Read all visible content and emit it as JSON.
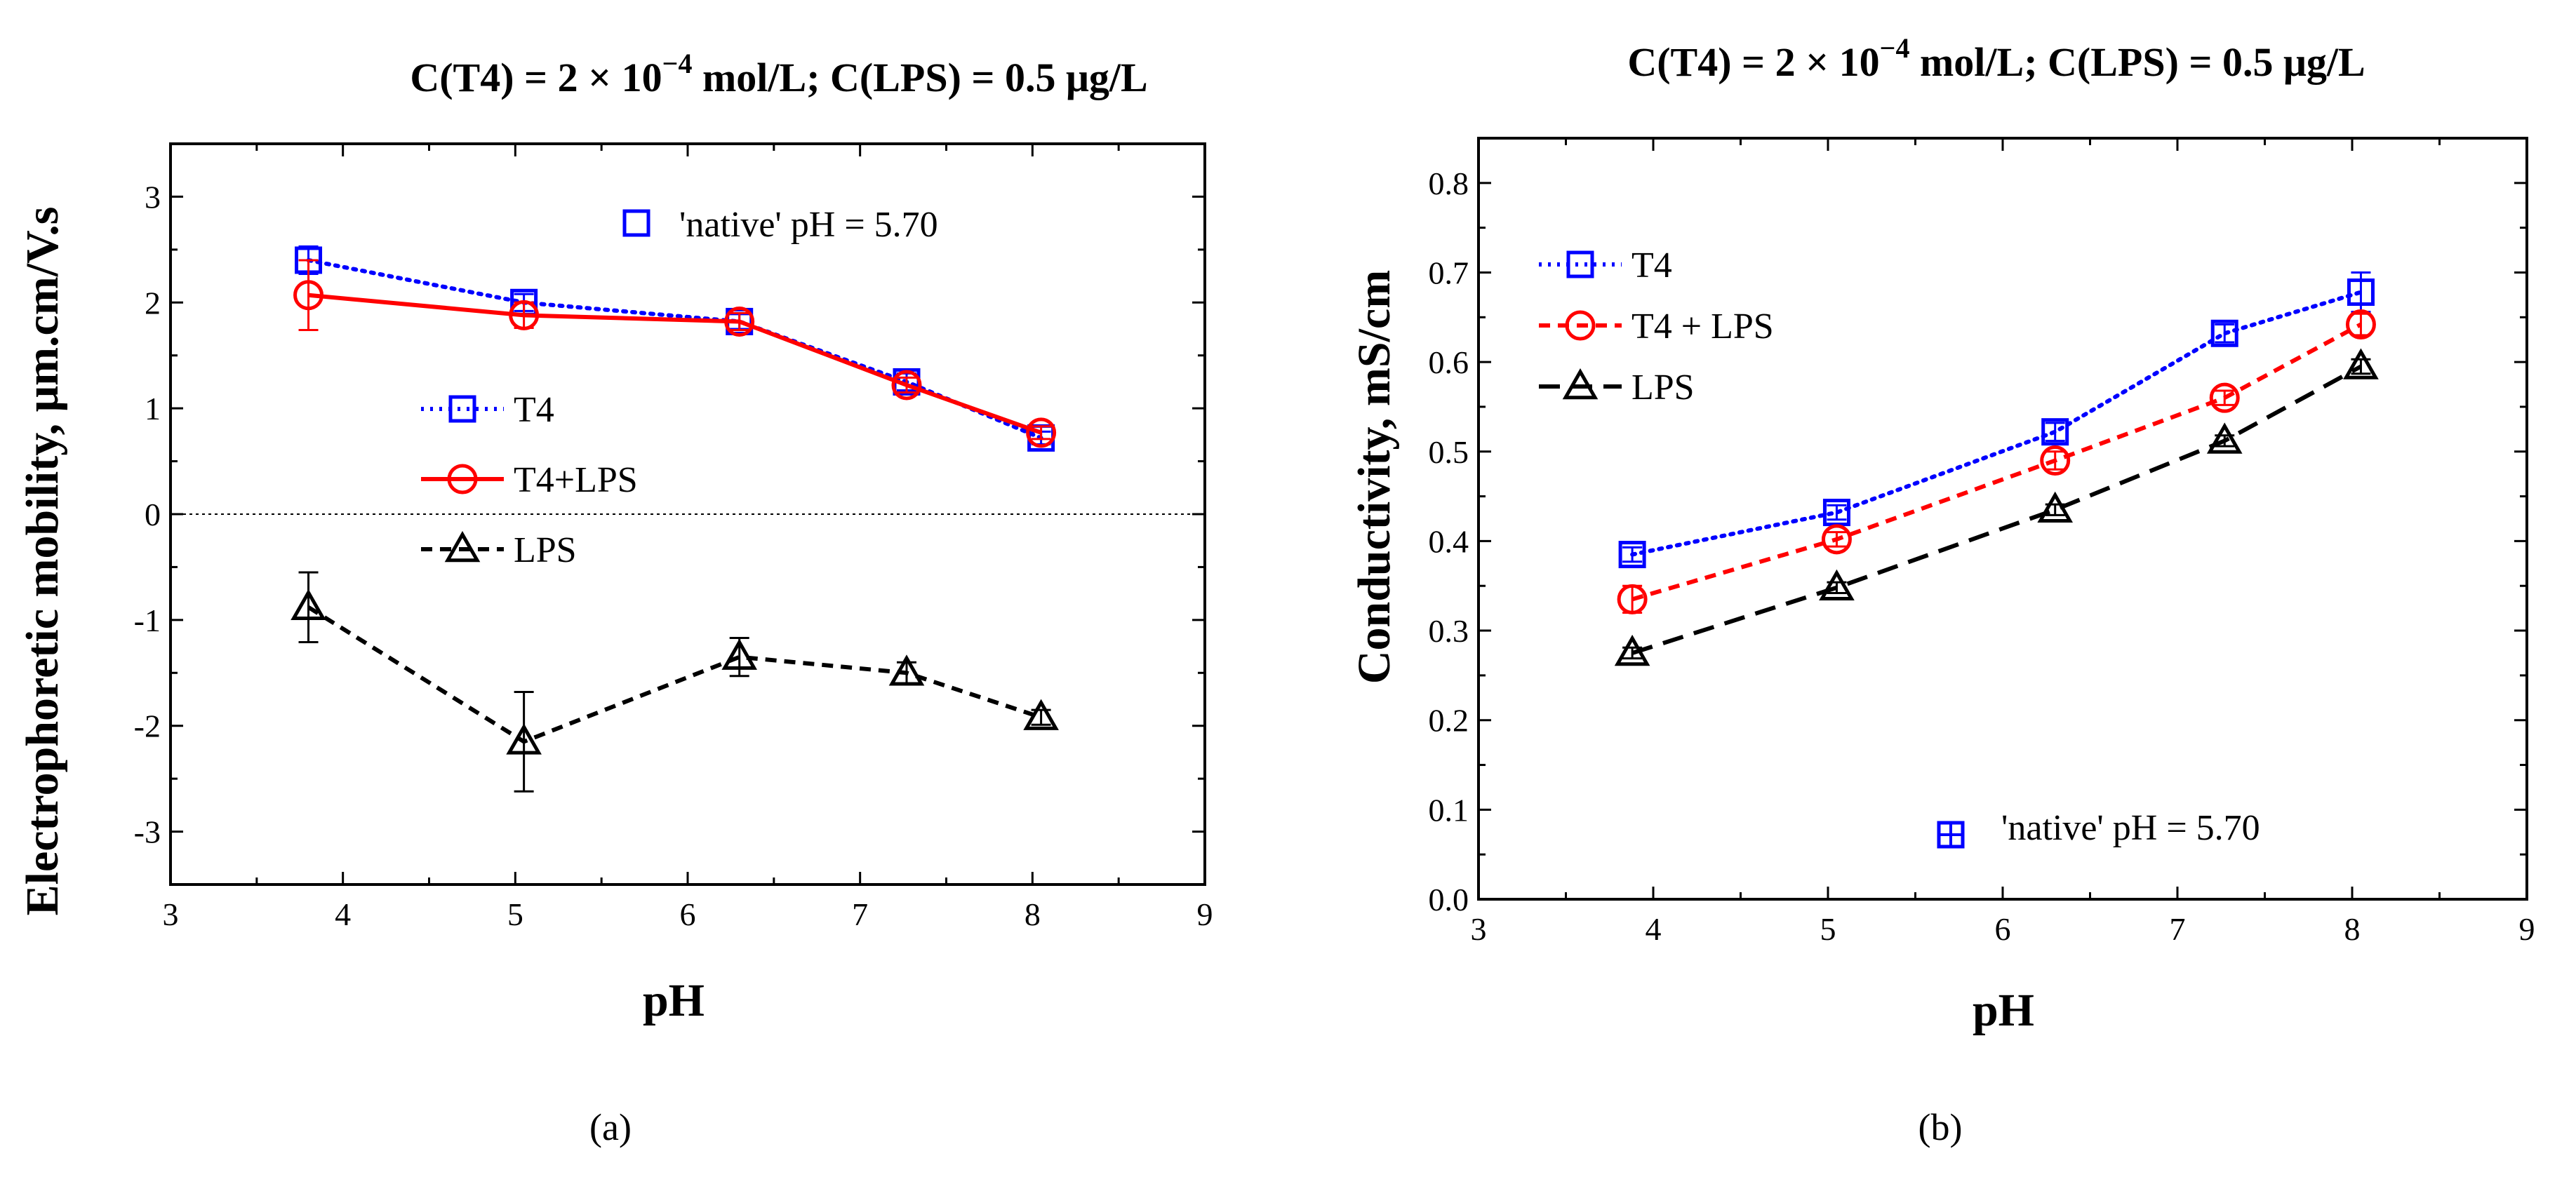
{
  "chart_data": [
    {
      "type": "line",
      "panel_label": "(a)",
      "title_parts": [
        "C(T4) = 2 × 10",
        "−4",
        " mol/L; C(LPS) = 0.5 μg/L"
      ],
      "xlabel": "pH",
      "ylabel": "Electrophoretic mobility, μm.cm/V.s",
      "xlim": [
        3,
        9
      ],
      "ylim": [
        -3.5,
        3.5
      ],
      "xticks": [
        3,
        4,
        5,
        6,
        7,
        8,
        9
      ],
      "yticks": [
        -3,
        -2,
        -1,
        0,
        1,
        2,
        3
      ],
      "zero_line": true,
      "series": [
        {
          "name": "T4",
          "color": "#0000ff",
          "dash": "dotted",
          "marker": "square",
          "x": [
            3.8,
            5.05,
            6.3,
            7.27,
            8.05
          ],
          "y": [
            2.4,
            2.0,
            1.82,
            1.25,
            0.72
          ],
          "err": [
            0.13,
            0.08,
            0.07,
            0.08,
            0.06
          ]
        },
        {
          "name": "T4+LPS",
          "color": "#ff0000",
          "dash": "solid",
          "marker": "circle",
          "x": [
            3.8,
            5.05,
            6.3,
            7.27,
            8.05
          ],
          "y": [
            2.07,
            1.88,
            1.82,
            1.22,
            0.77
          ],
          "err": [
            0.33,
            0.12,
            0.08,
            0.07,
            0.06
          ]
        },
        {
          "name": "LPS",
          "color": "#000000",
          "dash": "dashed",
          "marker": "triangle",
          "x": [
            3.8,
            5.05,
            6.3,
            7.27,
            8.05
          ],
          "y": [
            -0.88,
            -2.15,
            -1.35,
            -1.5,
            -1.92
          ],
          "err": [
            0.33,
            0.47,
            0.18,
            0.1,
            0.07
          ]
        }
      ],
      "native_marker": {
        "label": "'native' pH = 5.70",
        "color": "#0000ff"
      }
    },
    {
      "type": "line",
      "panel_label": "(b)",
      "title_parts": [
        "C(T4) = 2 × 10",
        "−4",
        " mol/L; C(LPS) = 0.5 μg/L"
      ],
      "xlabel": "pH",
      "ylabel": "Conductivity, mS/cm",
      "xlim": [
        3,
        9
      ],
      "ylim": [
        0.0,
        0.85
      ],
      "xticks": [
        3,
        4,
        5,
        6,
        7,
        8,
        9
      ],
      "yticks": [
        0.0,
        0.1,
        0.2,
        0.3,
        0.4,
        0.5,
        0.6,
        0.7,
        0.8
      ],
      "series": [
        {
          "name": "T4",
          "color": "#0000ff",
          "dash": "dotted",
          "marker": "square",
          "x": [
            3.88,
            5.05,
            6.3,
            7.27,
            8.05
          ],
          "y": [
            0.385,
            0.432,
            0.522,
            0.632,
            0.678
          ],
          "err": [
            0.008,
            0.008,
            0.01,
            0.01,
            0.022
          ]
        },
        {
          "name": "T4 + LPS",
          "color": "#ff0000",
          "dash": "dashed",
          "marker": "circle",
          "x": [
            3.88,
            5.05,
            6.3,
            7.27,
            8.05
          ],
          "y": [
            0.335,
            0.402,
            0.49,
            0.56,
            0.642
          ],
          "err": [
            0.015,
            0.008,
            0.01,
            0.008,
            0.012
          ]
        },
        {
          "name": "LPS",
          "color": "#000000",
          "dash": "longdash",
          "marker": "triangle",
          "x": [
            3.88,
            5.05,
            6.3,
            7.27,
            8.05
          ],
          "y": [
            0.275,
            0.348,
            0.435,
            0.512,
            0.595
          ],
          "err": [
            0.006,
            0.006,
            0.006,
            0.006,
            0.008
          ]
        }
      ],
      "native_marker": {
        "label": "'native' pH = 5.70",
        "color": "#0000ff"
      }
    }
  ]
}
